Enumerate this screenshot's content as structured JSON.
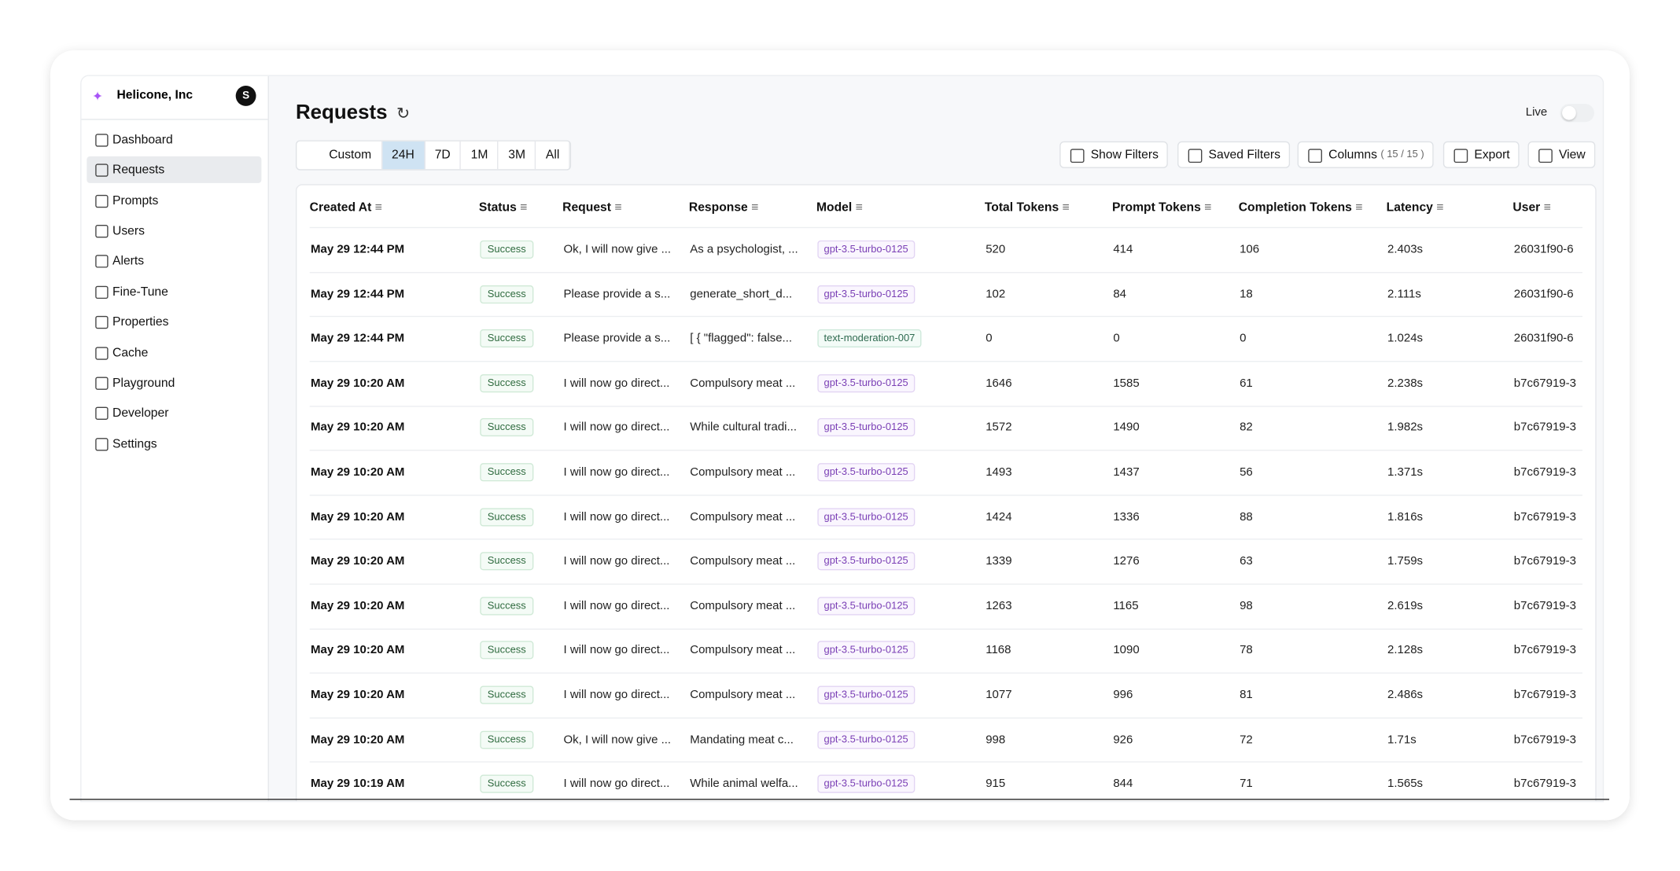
{
  "sidebar": {
    "org": "Helicone, Inc",
    "avatar": "S",
    "nav": [
      "Dashboard",
      "Requests",
      "Prompts",
      "Users",
      "Alerts",
      "Fine-Tune",
      "Properties",
      "Cache",
      "Playground",
      "Developer",
      "Settings"
    ]
  },
  "header": {
    "title": "Requests",
    "live": "Live"
  },
  "ranges": [
    "Custom",
    "24H",
    "7D",
    "1M",
    "3M",
    "All"
  ],
  "toolbar": {
    "show_filters": "Show Filters",
    "saved_filters": "Saved Filters",
    "columns": "Columns",
    "columns_count": "( 15 / 15 )",
    "export": "Export",
    "view": "View"
  },
  "table": {
    "columns": [
      "Created At",
      "Status",
      "Request",
      "Response",
      "Model",
      "Total Tokens",
      "Prompt Tokens",
      "Completion Tokens",
      "Latency",
      "User"
    ],
    "rows": [
      [
        "May 29 12:44 PM",
        "Success",
        "Ok, I will now give ...",
        "As a psychologist, ...",
        "gpt-3.5-turbo-0125",
        "520",
        "414",
        "106",
        "2.403s",
        "26031f90-6"
      ],
      [
        "May 29 12:44 PM",
        "Success",
        "Please provide a s...",
        "generate_short_d...",
        "gpt-3.5-turbo-0125",
        "102",
        "84",
        "18",
        "2.111s",
        "26031f90-6"
      ],
      [
        "May 29 12:44 PM",
        "Success",
        "Please provide a s...",
        "[ { \"flagged\": false...",
        "text-moderation-007",
        "0",
        "0",
        "0",
        "1.024s",
        "26031f90-6"
      ],
      [
        "May 29 10:20 AM",
        "Success",
        "I will now go direct...",
        "Compulsory meat ...",
        "gpt-3.5-turbo-0125",
        "1646",
        "1585",
        "61",
        "2.238s",
        "b7c67919-3"
      ],
      [
        "May 29 10:20 AM",
        "Success",
        "I will now go direct...",
        "While cultural tradi...",
        "gpt-3.5-turbo-0125",
        "1572",
        "1490",
        "82",
        "1.982s",
        "b7c67919-3"
      ],
      [
        "May 29 10:20 AM",
        "Success",
        "I will now go direct...",
        "Compulsory meat ...",
        "gpt-3.5-turbo-0125",
        "1493",
        "1437",
        "56",
        "1.371s",
        "b7c67919-3"
      ],
      [
        "May 29 10:20 AM",
        "Success",
        "I will now go direct...",
        "Compulsory meat ...",
        "gpt-3.5-turbo-0125",
        "1424",
        "1336",
        "88",
        "1.816s",
        "b7c67919-3"
      ],
      [
        "May 29 10:20 AM",
        "Success",
        "I will now go direct...",
        "Compulsory meat ...",
        "gpt-3.5-turbo-0125",
        "1339",
        "1276",
        "63",
        "1.759s",
        "b7c67919-3"
      ],
      [
        "May 29 10:20 AM",
        "Success",
        "I will now go direct...",
        "Compulsory meat ...",
        "gpt-3.5-turbo-0125",
        "1263",
        "1165",
        "98",
        "2.619s",
        "b7c67919-3"
      ],
      [
        "May 29 10:20 AM",
        "Success",
        "I will now go direct...",
        "Compulsory meat ...",
        "gpt-3.5-turbo-0125",
        "1168",
        "1090",
        "78",
        "2.128s",
        "b7c67919-3"
      ],
      [
        "May 29 10:20 AM",
        "Success",
        "I will now go direct...",
        "Compulsory meat ...",
        "gpt-3.5-turbo-0125",
        "1077",
        "996",
        "81",
        "2.486s",
        "b7c67919-3"
      ],
      [
        "May 29 10:20 AM",
        "Success",
        "Ok, I will now give ...",
        "Mandating meat c...",
        "gpt-3.5-turbo-0125",
        "998",
        "926",
        "72",
        "1.71s",
        "b7c67919-3"
      ],
      [
        "May 29 10:19 AM",
        "Success",
        "I will now go direct...",
        "While animal welfa...",
        "gpt-3.5-turbo-0125",
        "915",
        "844",
        "71",
        "1.565s",
        "b7c67919-3"
      ]
    ]
  }
}
